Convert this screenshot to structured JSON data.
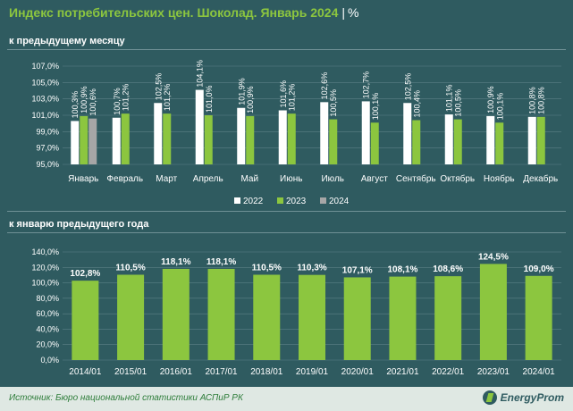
{
  "title": {
    "main": "Индекс потребительских цен. Шоколад. Январь 2024",
    "separator": "|",
    "unit": "%"
  },
  "colors": {
    "background": "#2f5b60",
    "accent": "#8cc63f",
    "y2022": "#ffffff",
    "y2023": "#8cc63f",
    "y2024": "#a6a6a6",
    "label": "#ffffff",
    "grid": "#5c8186"
  },
  "section1_title": "к предыдущему месяцу",
  "section2_title": "к январю предыдущего года",
  "source": "Источник: Бюро национальной статистики АСПиР РК",
  "logo": "EnergyProm",
  "chart_data": [
    {
      "type": "bar",
      "title": "к предыдущему месяцу",
      "categories": [
        "Январь",
        "Февраль",
        "Март",
        "Апрель",
        "Май",
        "Июнь",
        "Июль",
        "Август",
        "Сентябрь",
        "Октябрь",
        "Ноябрь",
        "Декабрь"
      ],
      "series": [
        {
          "name": "2022",
          "values": [
            100.3,
            100.7,
            102.5,
            104.1,
            101.9,
            101.6,
            102.6,
            102.7,
            102.5,
            101.1,
            100.9,
            100.8
          ],
          "labels": [
            "100,3%",
            "100,7%",
            "102,5%",
            "104,1%",
            "101,9%",
            "101,6%",
            "102,6%",
            "102,7%",
            "102,5%",
            "101,1%",
            "100,9%",
            "100,8%"
          ]
        },
        {
          "name": "2023",
          "values": [
            100.9,
            101.2,
            101.2,
            101.0,
            100.9,
            101.2,
            100.5,
            100.1,
            100.4,
            100.5,
            100.1,
            100.8
          ],
          "labels": [
            "100,9%",
            "101,2%",
            "101,2%",
            "101,0%",
            "100,9%",
            "101,2%",
            "100,5%",
            "100,1%",
            "100,4%",
            "100,5%",
            "100,1%",
            "100,8%"
          ]
        },
        {
          "name": "2024",
          "values": [
            100.6,
            null,
            null,
            null,
            null,
            null,
            null,
            null,
            null,
            null,
            null,
            null
          ],
          "labels": [
            "100,6%",
            "",
            "",
            "",
            "",
            "",
            "",
            "",
            "",
            "",
            "",
            ""
          ]
        }
      ],
      "ylim": [
        95,
        107
      ],
      "yticks": [
        95,
        97,
        99,
        101,
        103,
        105,
        107
      ],
      "ytick_labels": [
        "95,0%",
        "97,0%",
        "99,0%",
        "101,0%",
        "103,0%",
        "105,0%",
        "107,0%"
      ],
      "legend": [
        "2022",
        "2023",
        "2024"
      ],
      "legend_position": "bottom"
    },
    {
      "type": "bar",
      "title": "к январю предыдущего года",
      "categories": [
        "2014/01",
        "2015/01",
        "2016/01",
        "2017/01",
        "2018/01",
        "2019/01",
        "2020/01",
        "2021/01",
        "2022/01",
        "2023/01",
        "2024/01"
      ],
      "values": [
        102.8,
        110.5,
        118.1,
        118.1,
        110.5,
        110.3,
        107.1,
        108.1,
        108.6,
        124.5,
        109.0
      ],
      "labels": [
        "102,8%",
        "110,5%",
        "118,1%",
        "118,1%",
        "110,5%",
        "110,3%",
        "107,1%",
        "108,1%",
        "108,6%",
        "124,5%",
        "109,0%"
      ],
      "ylim": [
        0,
        140
      ],
      "yticks": [
        0,
        20,
        40,
        60,
        80,
        100,
        120,
        140
      ],
      "ytick_labels": [
        "0,0%",
        "20,0%",
        "40,0%",
        "60,0%",
        "80,0%",
        "100,0%",
        "120,0%",
        "140,0%"
      ]
    }
  ]
}
